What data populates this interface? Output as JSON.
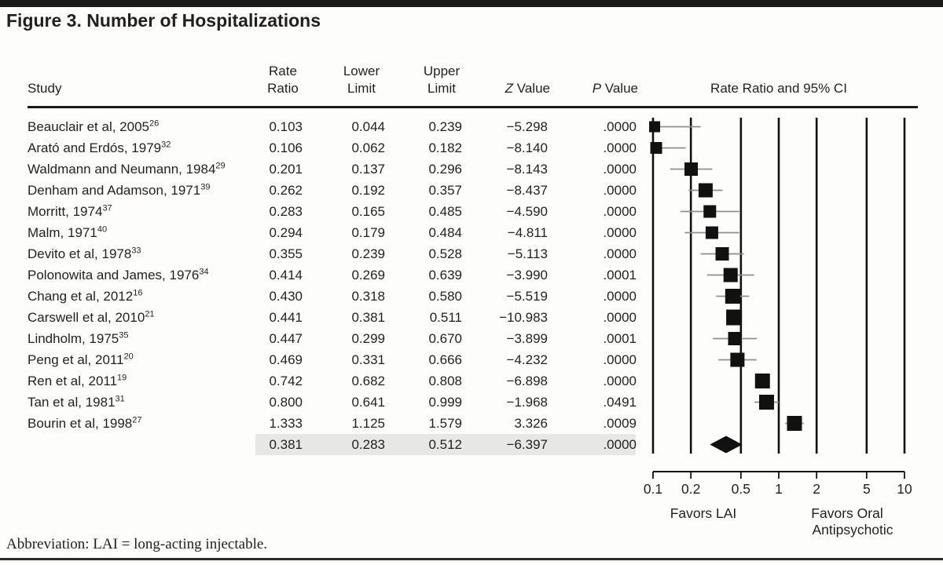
{
  "title": "Figure 3. Number of Hospitalizations",
  "table": {
    "headers": {
      "study": "Study",
      "rate_ratio": "Rate\nRatio",
      "lower": "Lower\nLimit",
      "upper": "Upper\nLimit",
      "z_italic": "Z",
      "z_rest": " Value",
      "p_italic": "P",
      "p_rest": " Value",
      "plot": "Rate Ratio and 95% CI"
    }
  },
  "chart_data": {
    "type": "forest",
    "x_scale": "log",
    "xlim": [
      0.1,
      10
    ],
    "x_ticks": [
      "0.1",
      "0.2",
      "0.5",
      "1",
      "2",
      "5",
      "10"
    ],
    "x_tick_values": [
      0.1,
      0.2,
      0.5,
      1,
      2,
      5,
      10
    ],
    "favors_left": "Favors LAI",
    "favors_right_line1": "Favors Oral",
    "favors_right_line2": "Antipsychotic",
    "studies": [
      {
        "name": "Beauclair et al, 2005",
        "ref": "26",
        "rate_ratio": 0.103,
        "lower": 0.044,
        "upper": 0.239,
        "z": -5.298,
        "p": ".0000",
        "marker": 14
      },
      {
        "name": "Arató and Erdós, 1979",
        "ref": "32",
        "rate_ratio": 0.106,
        "lower": 0.062,
        "upper": 0.182,
        "z": -8.14,
        "p": ".0000",
        "marker": 15
      },
      {
        "name": "Waldmann and Neumann, 1984",
        "ref": "29",
        "rate_ratio": 0.201,
        "lower": 0.137,
        "upper": 0.296,
        "z": -8.143,
        "p": ".0000",
        "marker": 17
      },
      {
        "name": "Denham and Adamson, 1971",
        "ref": "39",
        "rate_ratio": 0.262,
        "lower": 0.192,
        "upper": 0.357,
        "z": -8.437,
        "p": ".0000",
        "marker": 18
      },
      {
        "name": "Morritt, 1974",
        "ref": "37",
        "rate_ratio": 0.283,
        "lower": 0.165,
        "upper": 0.485,
        "z": -4.59,
        "p": ".0000",
        "marker": 16
      },
      {
        "name": "Malm, 1971",
        "ref": "40",
        "rate_ratio": 0.294,
        "lower": 0.179,
        "upper": 0.484,
        "z": -4.811,
        "p": ".0000",
        "marker": 16
      },
      {
        "name": "Devito et al, 1978",
        "ref": "33",
        "rate_ratio": 0.355,
        "lower": 0.239,
        "upper": 0.528,
        "z": -5.113,
        "p": ".0000",
        "marker": 17
      },
      {
        "name": "Polonowita and James, 1976",
        "ref": "34",
        "rate_ratio": 0.414,
        "lower": 0.269,
        "upper": 0.639,
        "z": -3.99,
        "p": ".0001",
        "marker": 18
      },
      {
        "name": "Chang et al, 2012",
        "ref": "16",
        "rate_ratio": 0.43,
        "lower": 0.318,
        "upper": 0.58,
        "z": -5.519,
        "p": ".0000",
        "marker": 19
      },
      {
        "name": "Carswell et al, 2010",
        "ref": "21",
        "rate_ratio": 0.441,
        "lower": 0.381,
        "upper": 0.511,
        "z": -10.983,
        "p": ".0000",
        "marker": 20
      },
      {
        "name": "Lindholm, 1975",
        "ref": "35",
        "rate_ratio": 0.447,
        "lower": 0.299,
        "upper": 0.67,
        "z": -3.899,
        "p": ".0001",
        "marker": 17
      },
      {
        "name": "Peng et al, 2011",
        "ref": "20",
        "rate_ratio": 0.469,
        "lower": 0.331,
        "upper": 0.666,
        "z": -4.232,
        "p": ".0000",
        "marker": 18
      },
      {
        "name": "Ren et al, 2011",
        "ref": "19",
        "rate_ratio": 0.742,
        "lower": 0.682,
        "upper": 0.808,
        "z": -6.898,
        "p": ".0000",
        "marker": 19
      },
      {
        "name": "Tan et al, 1981",
        "ref": "31",
        "rate_ratio": 0.8,
        "lower": 0.641,
        "upper": 0.999,
        "z": -1.968,
        "p": ".0491",
        "marker": 19
      },
      {
        "name": "Bourin et al, 1998",
        "ref": "27",
        "rate_ratio": 1.333,
        "lower": 1.125,
        "upper": 1.579,
        "z": 3.326,
        "p": ".0009",
        "marker": 19
      }
    ],
    "summary": {
      "rate_ratio": 0.381,
      "lower": 0.283,
      "upper": 0.512,
      "z": -6.397,
      "p": ".0000"
    }
  },
  "footer": "Abbreviation: LAI = long-acting injectable."
}
